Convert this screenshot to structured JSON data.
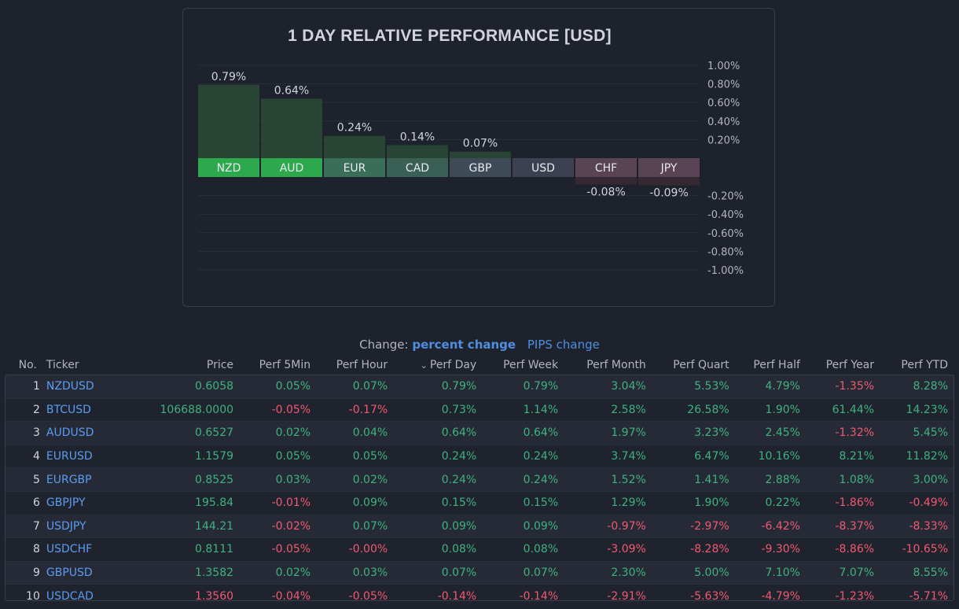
{
  "chart": {
    "title": "1 DAY RELATIVE PERFORMANCE  [USD]"
  },
  "chart_data": {
    "type": "bar",
    "title": "1 DAY RELATIVE PERFORMANCE  [USD]",
    "categories": [
      "NZD",
      "AUD",
      "EUR",
      "CAD",
      "GBP",
      "USD",
      "CHF",
      "JPY"
    ],
    "values": [
      0.79,
      0.64,
      0.24,
      0.14,
      0.07,
      0.0,
      -0.08,
      -0.09
    ],
    "value_labels": [
      "0.79%",
      "0.64%",
      "0.24%",
      "0.14%",
      "0.07%",
      "",
      "-0.08%",
      "-0.09%"
    ],
    "ylim": [
      -1.0,
      1.0
    ],
    "y_ticks_pos": [
      "1.00%",
      "0.80%",
      "0.60%",
      "0.40%",
      "0.20%"
    ],
    "y_ticks_neg": [
      "-0.20%",
      "-0.40%",
      "-0.60%",
      "-0.80%",
      "-1.00%"
    ],
    "label_colors": [
      "#2ea84c",
      "#2ea84c",
      "#3b6e58",
      "#3a5f55",
      "#3f4a57",
      "#3b4150",
      "#5a4453",
      "#5a4453"
    ]
  },
  "change_bar": {
    "label": "Change:",
    "active": "percent change",
    "alt": "PIPS change"
  },
  "table": {
    "headers": {
      "no": "No.",
      "ticker": "Ticker",
      "price": "Price",
      "perf_5min": "Perf 5Min",
      "perf_hour": "Perf Hour",
      "perf_day": "Perf Day",
      "perf_week": "Perf Week",
      "perf_month": "Perf Month",
      "perf_quart": "Perf Quart",
      "perf_half": "Perf Half",
      "perf_year": "Perf Year",
      "perf_ytd": "Perf YTD"
    },
    "rows": [
      {
        "no": "1",
        "ticker": "NZDUSD",
        "price": "0.6058",
        "p5": "0.05%",
        "ph": "0.07%",
        "pd": "0.79%",
        "pw": "0.79%",
        "pm": "3.04%",
        "pq": "5.53%",
        "phf": "4.79%",
        "py": "-1.35%",
        "pytd": "8.28%"
      },
      {
        "no": "2",
        "ticker": "BTCUSD",
        "price": "106688.0000",
        "p5": "-0.05%",
        "ph": "-0.17%",
        "pd": "0.73%",
        "pw": "1.14%",
        "pm": "2.58%",
        "pq": "26.58%",
        "phf": "1.90%",
        "py": "61.44%",
        "pytd": "14.23%"
      },
      {
        "no": "3",
        "ticker": "AUDUSD",
        "price": "0.6527",
        "p5": "0.02%",
        "ph": "0.04%",
        "pd": "0.64%",
        "pw": "0.64%",
        "pm": "1.97%",
        "pq": "3.23%",
        "phf": "2.45%",
        "py": "-1.32%",
        "pytd": "5.45%"
      },
      {
        "no": "4",
        "ticker": "EURUSD",
        "price": "1.1579",
        "p5": "0.05%",
        "ph": "0.05%",
        "pd": "0.24%",
        "pw": "0.24%",
        "pm": "3.74%",
        "pq": "6.47%",
        "phf": "10.16%",
        "py": "8.21%",
        "pytd": "11.82%"
      },
      {
        "no": "5",
        "ticker": "EURGBP",
        "price": "0.8525",
        "p5": "0.03%",
        "ph": "0.02%",
        "pd": "0.24%",
        "pw": "0.24%",
        "pm": "1.52%",
        "pq": "1.41%",
        "phf": "2.88%",
        "py": "1.08%",
        "pytd": "3.00%"
      },
      {
        "no": "6",
        "ticker": "GBPJPY",
        "price": "195.84",
        "p5": "-0.01%",
        "ph": "0.09%",
        "pd": "0.15%",
        "pw": "0.15%",
        "pm": "1.29%",
        "pq": "1.90%",
        "phf": "0.22%",
        "py": "-1.86%",
        "pytd": "-0.49%"
      },
      {
        "no": "7",
        "ticker": "USDJPY",
        "price": "144.21",
        "p5": "-0.02%",
        "ph": "0.07%",
        "pd": "0.09%",
        "pw": "0.09%",
        "pm": "-0.97%",
        "pq": "-2.97%",
        "phf": "-6.42%",
        "py": "-8.37%",
        "pytd": "-8.33%"
      },
      {
        "no": "8",
        "ticker": "USDCHF",
        "price": "0.8111",
        "p5": "-0.05%",
        "ph": "-0.00%",
        "pd": "0.08%",
        "pw": "0.08%",
        "pm": "-3.09%",
        "pq": "-8.28%",
        "phf": "-9.30%",
        "py": "-8.86%",
        "pytd": "-10.65%"
      },
      {
        "no": "9",
        "ticker": "GBPUSD",
        "price": "1.3582",
        "p5": "0.02%",
        "ph": "0.03%",
        "pd": "0.07%",
        "pw": "0.07%",
        "pm": "2.30%",
        "pq": "5.00%",
        "phf": "7.10%",
        "py": "7.07%",
        "pytd": "8.55%"
      },
      {
        "no": "10",
        "ticker": "USDCAD",
        "price": "1.3560",
        "p5": "-0.04%",
        "ph": "-0.05%",
        "pd": "-0.14%",
        "pw": "-0.14%",
        "pm": "-2.91%",
        "pq": "-5.63%",
        "phf": "-4.79%",
        "py": "-1.23%",
        "pytd": "-5.71%"
      }
    ]
  },
  "colors": {
    "positive": "#3fb27f",
    "negative": "#ef5a6f",
    "ticker": "#5b9cf0",
    "link": "#4e8fe0"
  }
}
